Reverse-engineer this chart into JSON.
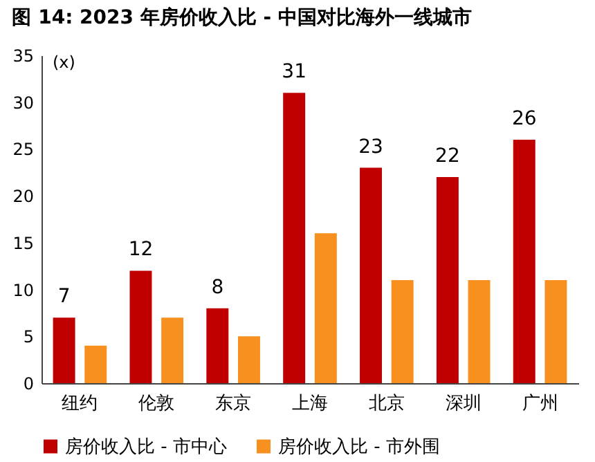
{
  "chart_data": {
    "type": "bar",
    "title": "图 14: 2023 年房价收入比 - 中国对比海外一线城市",
    "ylabel": "(x)",
    "categories": [
      "纽约",
      "伦敦",
      "东京",
      "上海",
      "北京",
      "深圳",
      "广州"
    ],
    "series": [
      {
        "name": "房价收入比 - 市中心",
        "color": "#c00000",
        "values": [
          7,
          12,
          8,
          31,
          23,
          22,
          26
        ],
        "value_labels": [
          "7",
          "12",
          "8",
          "31",
          "23",
          "22",
          "26"
        ]
      },
      {
        "name": "房价收入比 - 市外围",
        "color": "#f7901e",
        "values": [
          4,
          7,
          5,
          16,
          11,
          11,
          11
        ]
      }
    ],
    "ylim": [
      0,
      35
    ],
    "yticks": [
      0,
      5,
      10,
      15,
      20,
      25,
      30,
      35
    ],
    "grid": false,
    "legend": "bottom"
  }
}
